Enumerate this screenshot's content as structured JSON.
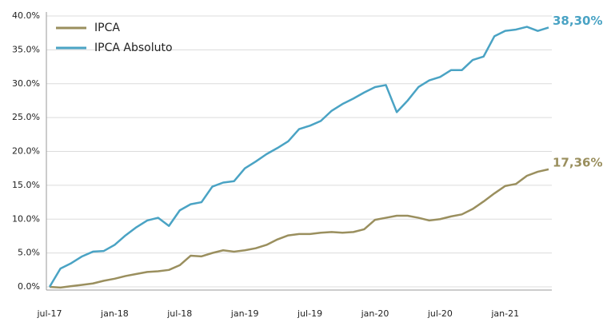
{
  "chart_data": {
    "type": "line",
    "categories": [
      "jul-17",
      null,
      null,
      null,
      null,
      null,
      "jan-18",
      null,
      null,
      null,
      null,
      null,
      "jul-18",
      null,
      null,
      null,
      null,
      null,
      "jan-19",
      null,
      null,
      null,
      null,
      null,
      "jul-19",
      null,
      null,
      null,
      null,
      null,
      "jan-20",
      null,
      null,
      null,
      null,
      null,
      "jul-20",
      null,
      null,
      null,
      null,
      null,
      "jan-21",
      null,
      null,
      null,
      null
    ],
    "series": [
      {
        "name": "IPCA",
        "color": "#9a8f5e",
        "values": [
          0.0,
          -0.1,
          0.1,
          0.3,
          0.5,
          0.9,
          1.2,
          1.6,
          1.9,
          2.2,
          2.3,
          2.5,
          3.2,
          4.6,
          4.5,
          5.0,
          5.4,
          5.2,
          5.4,
          5.7,
          6.2,
          7.0,
          7.6,
          7.8,
          7.8,
          8.0,
          8.1,
          8.0,
          8.1,
          8.5,
          9.9,
          10.2,
          10.5,
          10.5,
          10.2,
          9.8,
          10.0,
          10.4,
          10.7,
          11.5,
          12.6,
          13.8,
          14.9,
          15.2,
          16.4,
          17.0,
          17.36
        ],
        "end_label": "17,36%"
      },
      {
        "name": "IPCA Absoluto",
        "color": "#4aa3c4",
        "values": [
          0.0,
          2.7,
          3.5,
          4.5,
          5.2,
          5.3,
          6.2,
          7.6,
          8.8,
          9.8,
          10.2,
          9.0,
          11.3,
          12.2,
          12.5,
          14.8,
          15.4,
          15.6,
          17.5,
          18.5,
          19.6,
          20.5,
          21.5,
          23.3,
          23.8,
          24.5,
          26.0,
          27.0,
          27.8,
          28.7,
          29.5,
          29.8,
          25.8,
          27.5,
          29.5,
          30.5,
          31.0,
          32.0,
          32.0,
          33.5,
          34.0,
          37.0,
          37.8,
          38.0,
          38.4,
          37.8,
          38.3
        ],
        "end_label": "38,30%"
      }
    ],
    "ylim": [
      0,
      40
    ],
    "yticks": [
      {
        "value": 0,
        "label": "0.0%"
      },
      {
        "value": 5,
        "label": "5.0%"
      },
      {
        "value": 10,
        "label": "10.0%"
      },
      {
        "value": 15,
        "label": "15.0%"
      },
      {
        "value": 20,
        "label": "20.0%"
      },
      {
        "value": 25,
        "label": "25.0%"
      },
      {
        "value": 30,
        "label": "30.0%"
      },
      {
        "value": 35,
        "label": "35.0%"
      },
      {
        "value": 40,
        "label": "40.0%"
      }
    ],
    "grid": true,
    "legend": "top-left"
  }
}
